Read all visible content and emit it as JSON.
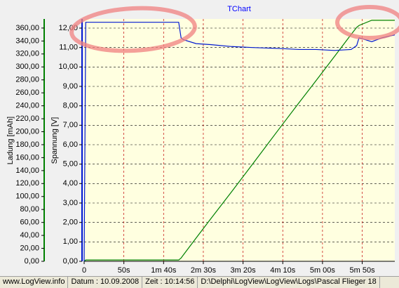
{
  "chart_data": {
    "type": "line",
    "title": "TChart",
    "y_label": "Ladung [mAh]",
    "y2_label": "Spannung [V]",
    "x": [
      0,
      2,
      60,
      119,
      122,
      125,
      141,
      159,
      186,
      212,
      247,
      270,
      292,
      315,
      336,
      343,
      346,
      362,
      375,
      391
    ],
    "series": [
      {
        "name": "Ladung",
        "color": "#008000",
        "values": [
          0,
          2,
          2,
          2,
          5,
          10,
          36,
          65,
          108,
          150,
          207,
          244,
          279,
          316,
          350,
          361,
          364,
          372,
          372,
          372
        ]
      },
      {
        "name": "Spannung",
        "color": "#0018d0",
        "axis": "y2",
        "values": [
          0,
          12.3,
          12.3,
          12.3,
          11.5,
          11.4,
          11.2,
          11.15,
          11.05,
          11.0,
          10.95,
          10.9,
          10.9,
          10.85,
          10.9,
          11.1,
          11.5,
          11.3,
          11.5,
          11.65
        ]
      }
    ],
    "xlim": [
      0,
      391
    ],
    "xticks": [
      0,
      {
        "value": 50,
        "label": "50s"
      },
      {
        "value": 100,
        "label": "1m 40s"
      },
      {
        "value": 150,
        "label": "2m 30s"
      },
      {
        "value": 200,
        "label": "3m 20s"
      },
      {
        "value": 250,
        "label": "4m 10s"
      },
      {
        "value": 300,
        "label": "5m 00s"
      },
      {
        "value": 350,
        "label": "5m 50s"
      }
    ],
    "ylim": [
      0,
      374
    ],
    "yticks": [
      {
        "value": 0,
        "label": "0,00"
      },
      {
        "value": 20,
        "label": "20,00"
      },
      {
        "value": 40,
        "label": "40,00"
      },
      {
        "value": 60,
        "label": "60,00"
      },
      {
        "value": 80,
        "label": "80,00"
      },
      {
        "value": 100,
        "label": "100,00"
      },
      {
        "value": 120,
        "label": "120,00"
      },
      {
        "value": 140,
        "label": "140,00"
      },
      {
        "value": 160,
        "label": "160,00"
      },
      {
        "value": 180,
        "label": "180,00"
      },
      {
        "value": 200,
        "label": "200,00"
      },
      {
        "value": 220,
        "label": "220,00"
      },
      {
        "value": 240,
        "label": "240,00"
      },
      {
        "value": 260,
        "label": "260,00"
      },
      {
        "value": 280,
        "label": "280,00"
      },
      {
        "value": 300,
        "label": "300,00"
      },
      {
        "value": 320,
        "label": "320,00"
      },
      {
        "value": 340,
        "label": "340,00"
      },
      {
        "value": 360,
        "label": "360,00"
      }
    ],
    "y2lim": [
      0,
      12.47
    ],
    "y2ticks": [
      {
        "value": 0,
        "label": "0,00"
      },
      {
        "value": 1,
        "label": "1,00"
      },
      {
        "value": 2,
        "label": "2,00"
      },
      {
        "value": 3,
        "label": "3,00"
      },
      {
        "value": 4,
        "label": "4,00"
      },
      {
        "value": 5,
        "label": "5,00"
      },
      {
        "value": 6,
        "label": "6,00"
      },
      {
        "value": 7,
        "label": "7,00"
      },
      {
        "value": 8,
        "label": "8,00"
      },
      {
        "value": 9,
        "label": "9,00"
      },
      {
        "value": 10,
        "label": "10,00"
      },
      {
        "value": 11,
        "label": "11,00"
      },
      {
        "value": 12,
        "label": "12,00"
      }
    ],
    "grid": true
  },
  "status_bar": [
    "www.LogView.info",
    "Datum : 10.09.2008",
    "Zeit : 10:14:56",
    "D:\\Delphi\\LogView\\LogView\\Logs\\Pascal Flieger 18"
  ]
}
